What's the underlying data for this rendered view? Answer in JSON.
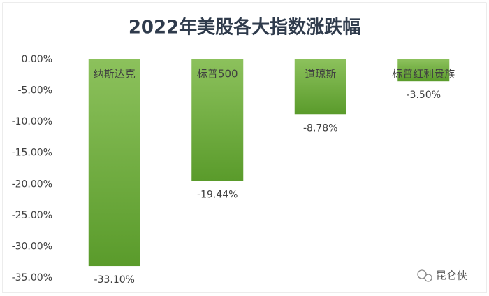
{
  "chart_data": {
    "type": "bar",
    "title": "2022年美股各大指数涨跌幅",
    "categories": [
      "纳斯达克",
      "标普500",
      "道琼斯",
      "标普红利贵族"
    ],
    "values": [
      -33.1,
      -19.44,
      -8.78,
      -3.5
    ],
    "value_labels": [
      "-33.10%",
      "-19.44%",
      "-8.78%",
      "-3.50%"
    ],
    "color_top": "#8cc15c",
    "color_bottom": "#5a9b2b",
    "ylim": [
      -35,
      0
    ],
    "yticks": [
      {
        "value": 0,
        "label": "0.00%"
      },
      {
        "value": -5,
        "label": "-5.00%"
      },
      {
        "value": -10,
        "label": "-10.00%"
      },
      {
        "value": -15,
        "label": "-15.00%"
      },
      {
        "value": -20,
        "label": "-20.00%"
      },
      {
        "value": -25,
        "label": "-25.00%"
      },
      {
        "value": -30,
        "label": "-30.00%"
      },
      {
        "value": -35,
        "label": "-35.00%"
      }
    ],
    "grid": false
  },
  "watermark": "昆仑侠"
}
